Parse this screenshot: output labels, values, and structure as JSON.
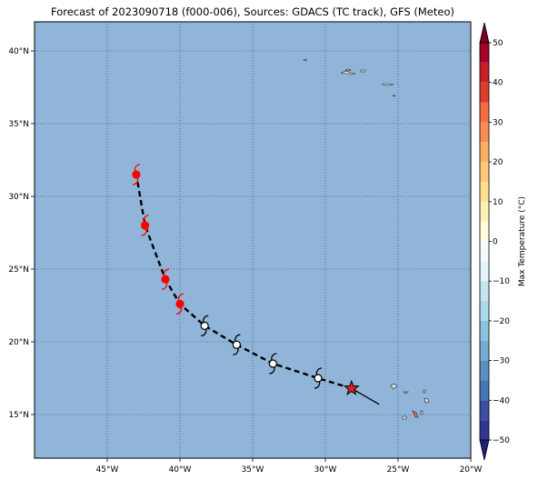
{
  "title": "Forecast of 2023090718 (f000-006), Sources: GDACS (TC track), GFS (Meteo)",
  "map": {
    "lon_range": [
      -50,
      -20
    ],
    "lat_range": [
      12,
      42
    ],
    "ocean_color": "#90b5d9",
    "grid": "dotted",
    "lon_ticks": [
      {
        "value": -45,
        "label": "45°W"
      },
      {
        "value": -40,
        "label": "40°W"
      },
      {
        "value": -35,
        "label": "35°W"
      },
      {
        "value": -30,
        "label": "30°W"
      },
      {
        "value": -25,
        "label": "25°W"
      },
      {
        "value": -20,
        "label": "20°W"
      }
    ],
    "lat_ticks": [
      {
        "value": 40,
        "label": "40°N"
      },
      {
        "value": 35,
        "label": "35°N"
      },
      {
        "value": 30,
        "label": "30°N"
      },
      {
        "value": 25,
        "label": "25°N"
      },
      {
        "value": 20,
        "label": "20°N"
      },
      {
        "value": 15,
        "label": "15°N"
      }
    ]
  },
  "track": {
    "current_position": {
      "lon": -28.2,
      "lat": 16.8,
      "icon": "star-icon",
      "color": "#e02020"
    },
    "motion_vector_end": {
      "lon": -26.3,
      "lat": 15.7
    },
    "forecast_points": [
      {
        "lon": -43.0,
        "lat": 31.5,
        "color": "#ff0000"
      },
      {
        "lon": -42.4,
        "lat": 28.0,
        "color": "#ff0000"
      },
      {
        "lon": -41.0,
        "lat": 24.3,
        "color": "#ff0000"
      },
      {
        "lon": -40.0,
        "lat": 22.6,
        "color": "#ff0000"
      },
      {
        "lon": -38.3,
        "lat": 21.1,
        "color": "#ffffff"
      },
      {
        "lon": -36.1,
        "lat": 19.8,
        "color": "#ffffff"
      },
      {
        "lon": -33.6,
        "lat": 18.5,
        "color": "#ffffff"
      },
      {
        "lon": -30.5,
        "lat": 17.5,
        "color": "#ffffff"
      }
    ]
  },
  "colorbar": {
    "label": "Max Temperature (°C)",
    "range": [
      -50,
      50
    ],
    "ticks": [
      {
        "value": 50,
        "label": "50"
      },
      {
        "value": 40,
        "label": "40"
      },
      {
        "value": 30,
        "label": "30"
      },
      {
        "value": 20,
        "label": "20"
      },
      {
        "value": 10,
        "label": "10"
      },
      {
        "value": 0,
        "label": "0"
      },
      {
        "value": -10,
        "label": "−10"
      },
      {
        "value": -20,
        "label": "−20"
      },
      {
        "value": -30,
        "label": "−30"
      },
      {
        "value": -40,
        "label": "−40"
      },
      {
        "value": -50,
        "label": "−50"
      }
    ],
    "bands": [
      {
        "from": 45,
        "to": 50,
        "color": "#a50026"
      },
      {
        "from": 40,
        "to": 45,
        "color": "#c51f28"
      },
      {
        "from": 35,
        "to": 40,
        "color": "#dc3d2d"
      },
      {
        "from": 30,
        "to": 35,
        "color": "#f46d43"
      },
      {
        "from": 25,
        "to": 30,
        "color": "#f88d52"
      },
      {
        "from": 20,
        "to": 25,
        "color": "#fdae61"
      },
      {
        "from": 15,
        "to": 20,
        "color": "#fdc877"
      },
      {
        "from": 10,
        "to": 15,
        "color": "#fee090"
      },
      {
        "from": 5,
        "to": 10,
        "color": "#fff1b3"
      },
      {
        "from": 0,
        "to": 5,
        "color": "#ffffd9"
      },
      {
        "from": -5,
        "to": 0,
        "color": "#f4fbf9"
      },
      {
        "from": -10,
        "to": -5,
        "color": "#e0f3f8"
      },
      {
        "from": -15,
        "to": -10,
        "color": "#c3e5ef"
      },
      {
        "from": -20,
        "to": -15,
        "color": "#abd9e9"
      },
      {
        "from": -25,
        "to": -20,
        "color": "#8dc2dc"
      },
      {
        "from": -30,
        "to": -25,
        "color": "#74add1"
      },
      {
        "from": -35,
        "to": -30,
        "color": "#5b8fc2"
      },
      {
        "from": -40,
        "to": -35,
        "color": "#4575b4"
      },
      {
        "from": -45,
        "to": -40,
        "color": "#3b4fa0"
      },
      {
        "from": -50,
        "to": -45,
        "color": "#313695"
      }
    ],
    "over_color": "#7d0022",
    "under_color": "#1f1f7a"
  }
}
